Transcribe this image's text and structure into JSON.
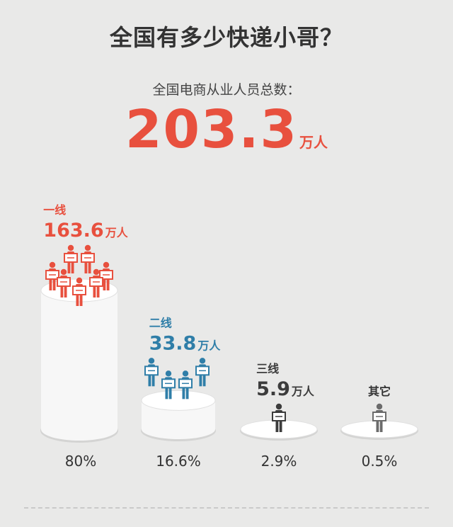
{
  "header": {
    "title": "全国有多少快递小哥？",
    "subtitle": "全国电商从业人员总数：",
    "total_value": "203.3",
    "total_unit": "万人"
  },
  "colors": {
    "tier1": "#e8503e",
    "tier2": "#2f7ea8",
    "tier3": "#3c3c3c",
    "other": "#6b6b6b",
    "cylinder": "#ffffff",
    "background": "#e9e9e8"
  },
  "chart_data": {
    "type": "bar",
    "title": "全国有多少快递小哥？",
    "categories": [
      "一线",
      "二线",
      "三线",
      "其它"
    ],
    "series": [
      {
        "values": [
          163.6,
          33.8,
          5.9,
          null
        ],
        "value_labels": [
          "163.6",
          "33.8",
          "5.9",
          ""
        ],
        "unit": "万人",
        "percent_labels": [
          "80%",
          "16.6%",
          "2.9%",
          "0.5%"
        ],
        "percent": [
          80,
          16.6,
          2.9,
          0.5
        ]
      }
    ],
    "icon_counts": [
      7,
      4,
      1,
      1
    ]
  }
}
